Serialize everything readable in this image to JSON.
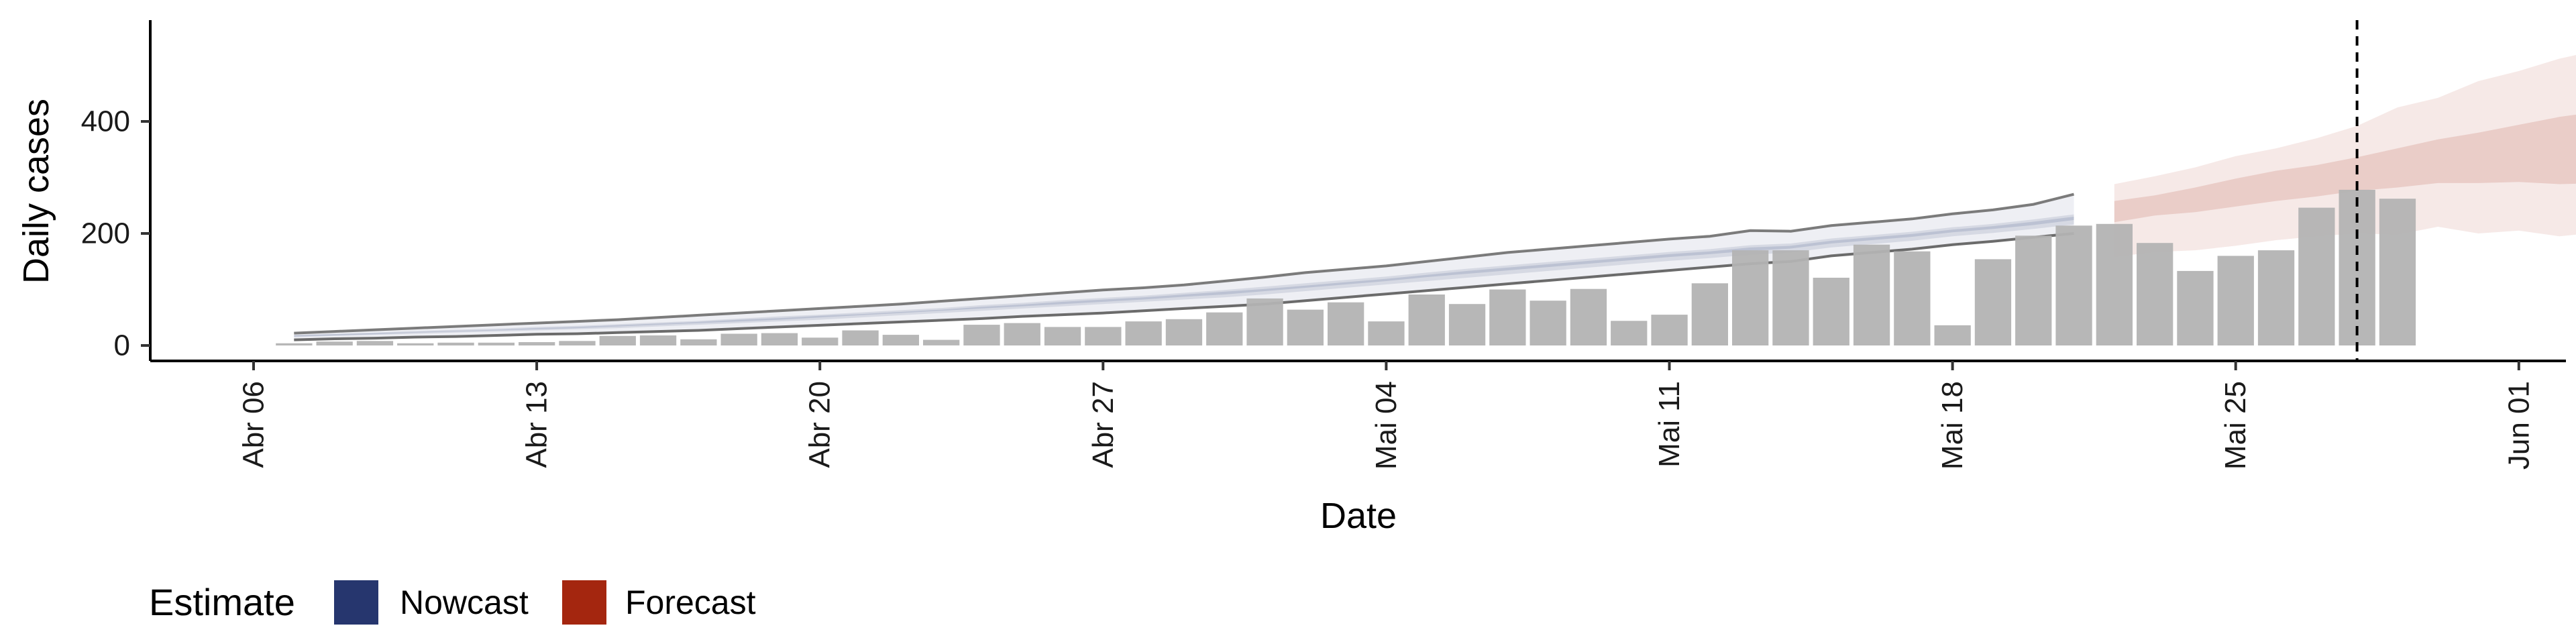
{
  "chart_data": {
    "type": "bar",
    "title": "",
    "xlabel": "Date",
    "ylabel": "Daily cases",
    "x_tick_labels": [
      "Abr 06",
      "Abr 13",
      "Abr 20",
      "Abr 27",
      "Mai 04",
      "Mai 11",
      "Mai 18",
      "Mai 25",
      "Jun 01"
    ],
    "y_tick_labels": [
      "0",
      "200",
      "400"
    ],
    "ylim": [
      0,
      560
    ],
    "grid": false,
    "legend_position": "bottom-left",
    "legend": {
      "title": "Estimate",
      "items": [
        {
          "label": "Nowcast",
          "color": "#26366e"
        },
        {
          "label": "Forecast",
          "color": "#a4260f"
        }
      ]
    },
    "vline_date": "May 28",
    "bars": {
      "color": "#b3b3b3",
      "dates": [
        "Apr 07",
        "Apr 08",
        "Apr 09",
        "Apr 10",
        "Apr 11",
        "Apr 12",
        "Apr 13",
        "Apr 14",
        "Apr 15",
        "Apr 16",
        "Apr 17",
        "Apr 18",
        "Apr 19",
        "Apr 20",
        "Apr 21",
        "Apr 22",
        "Apr 23",
        "Apr 24",
        "Apr 25",
        "Apr 26",
        "Apr 27",
        "Apr 28",
        "Apr 29",
        "Apr 30",
        "May 01",
        "May 02",
        "May 03",
        "May 04",
        "May 05",
        "May 06",
        "May 07",
        "May 08",
        "May 09",
        "May 10",
        "May 11",
        "May 12",
        "May 13",
        "May 14",
        "May 15",
        "May 16",
        "May 17",
        "May 18",
        "May 19",
        "May 20",
        "May 21",
        "May 22",
        "May 23",
        "May 24",
        "May 25",
        "May 26",
        "May 27",
        "May 28",
        "May 29"
      ],
      "values": [
        4,
        7,
        8,
        4,
        5,
        5,
        6,
        8,
        17,
        18,
        11,
        21,
        22,
        14,
        27,
        19,
        10,
        37,
        40,
        33,
        33,
        43,
        47,
        59,
        84,
        64,
        77,
        43,
        91,
        74,
        100,
        80,
        101,
        44,
        55,
        111,
        170,
        170,
        121,
        180,
        168,
        36,
        154,
        196,
        214,
        217,
        183,
        133,
        160,
        170,
        246,
        278,
        262
      ]
    },
    "nowcast": {
      "color": "#26366e",
      "dates": [
        "Apr 07",
        "Apr 08",
        "Apr 09",
        "Apr 10",
        "Apr 11",
        "Apr 12",
        "Apr 13",
        "Apr 14",
        "Apr 15",
        "Apr 16",
        "Apr 17",
        "Apr 18",
        "Apr 19",
        "Apr 20",
        "Apr 21",
        "Apr 22",
        "Apr 23",
        "Apr 24",
        "Apr 25",
        "Apr 26",
        "Apr 27",
        "Apr 28",
        "Apr 29",
        "Apr 30",
        "May 01",
        "May 02",
        "May 03",
        "May 04",
        "May 05",
        "May 06",
        "May 07",
        "May 08",
        "May 09",
        "May 10",
        "May 11",
        "May 12",
        "May 13",
        "May 14",
        "May 15",
        "May 16",
        "May 17",
        "May 18",
        "May 19",
        "May 20",
        "May 21"
      ],
      "lower90": [
        10,
        12,
        13,
        15,
        16,
        18,
        20,
        21,
        23,
        25,
        27,
        30,
        33,
        36,
        39,
        42,
        45,
        48,
        52,
        55,
        58,
        62,
        66,
        70,
        74,
        80,
        86,
        92,
        98,
        104,
        110,
        116,
        122,
        128,
        134,
        140,
        146,
        150,
        160,
        166,
        172,
        180,
        186,
        193,
        200
      ],
      "upper90": [
        22,
        25,
        28,
        31,
        34,
        37,
        40,
        43,
        46,
        50,
        54,
        58,
        62,
        66,
        70,
        74,
        79,
        84,
        89,
        94,
        99,
        103,
        108,
        115,
        122,
        130,
        136,
        142,
        150,
        158,
        166,
        172,
        178,
        184,
        190,
        195,
        205,
        204,
        214,
        220,
        226,
        235,
        242,
        252,
        270
      ],
      "lower50": [
        15,
        17,
        19,
        21,
        23,
        25,
        27,
        29,
        31,
        34,
        37,
        40,
        43,
        46,
        50,
        54,
        58,
        62,
        66,
        70,
        74,
        78,
        82,
        86,
        91,
        97,
        103,
        109,
        115,
        121,
        127,
        133,
        139,
        145,
        151,
        156,
        162,
        166,
        175,
        181,
        187,
        195,
        201,
        208,
        216
      ],
      "upper50": [
        19,
        21,
        23,
        26,
        28,
        30,
        33,
        35,
        38,
        41,
        44,
        48,
        52,
        55,
        59,
        63,
        67,
        72,
        76,
        81,
        85,
        89,
        94,
        99,
        105,
        111,
        117,
        123,
        130,
        137,
        143,
        149,
        155,
        161,
        167,
        172,
        179,
        182,
        191,
        197,
        203,
        211,
        217,
        225,
        234
      ],
      "lower20": [
        16,
        18,
        20,
        23,
        25,
        27,
        29,
        31,
        34,
        37,
        40,
        43,
        46,
        50,
        54,
        58,
        62,
        66,
        70,
        74,
        78,
        82,
        87,
        91,
        97,
        103,
        109,
        115,
        122,
        128,
        134,
        140,
        146,
        152,
        158,
        163,
        169,
        173,
        182,
        188,
        194,
        202,
        208,
        215,
        224
      ],
      "upper20": [
        18,
        20,
        22,
        24,
        26,
        28,
        31,
        33,
        36,
        39,
        42,
        46,
        49,
        53,
        56,
        60,
        64,
        69,
        73,
        78,
        82,
        86,
        91,
        96,
        101,
        107,
        113,
        119,
        126,
        133,
        139,
        145,
        151,
        157,
        163,
        168,
        175,
        178,
        187,
        193,
        199,
        207,
        213,
        221,
        230
      ]
    },
    "forecast": {
      "color": "#a4260f",
      "dates": [
        "May 22",
        "May 23",
        "May 24",
        "May 25",
        "May 26",
        "May 27",
        "May 28",
        "May 29",
        "May 30",
        "May 31",
        "Jun 01",
        "Jun 02",
        "Jun 03",
        "Jun 04"
      ],
      "lower90": [
        158,
        167,
        170,
        178,
        188,
        195,
        200,
        198,
        212,
        200,
        205,
        195,
        202,
        204
      ],
      "upper90": [
        288,
        302,
        318,
        338,
        352,
        370,
        392,
        425,
        442,
        472,
        490,
        512,
        528,
        562
      ],
      "lower50": [
        220,
        232,
        238,
        248,
        258,
        266,
        276,
        282,
        290,
        290,
        292,
        288,
        290,
        292
      ],
      "upper50": [
        258,
        268,
        282,
        298,
        312,
        322,
        336,
        352,
        368,
        380,
        394,
        408,
        418,
        432
      ]
    }
  }
}
